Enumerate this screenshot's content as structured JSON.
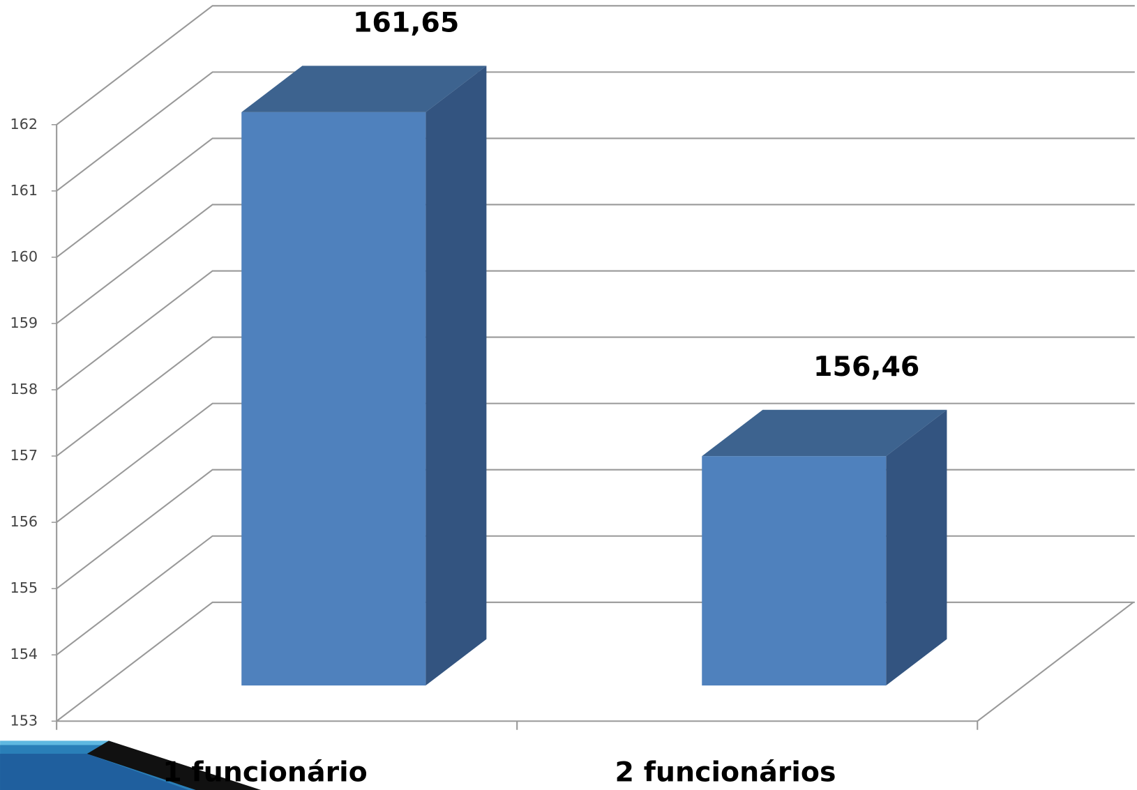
{
  "chart_data": {
    "type": "bar3d",
    "categories": [
      "1 funcionário",
      "2 funcionários"
    ],
    "values": [
      161.65,
      156.46
    ],
    "value_labels": [
      "161,65",
      "156,46"
    ],
    "color": "#4f81bd",
    "ylim": [
      153,
      162
    ],
    "yticks": [
      153,
      154,
      155,
      156,
      157,
      158,
      159,
      160,
      161,
      162
    ],
    "grid": true
  }
}
